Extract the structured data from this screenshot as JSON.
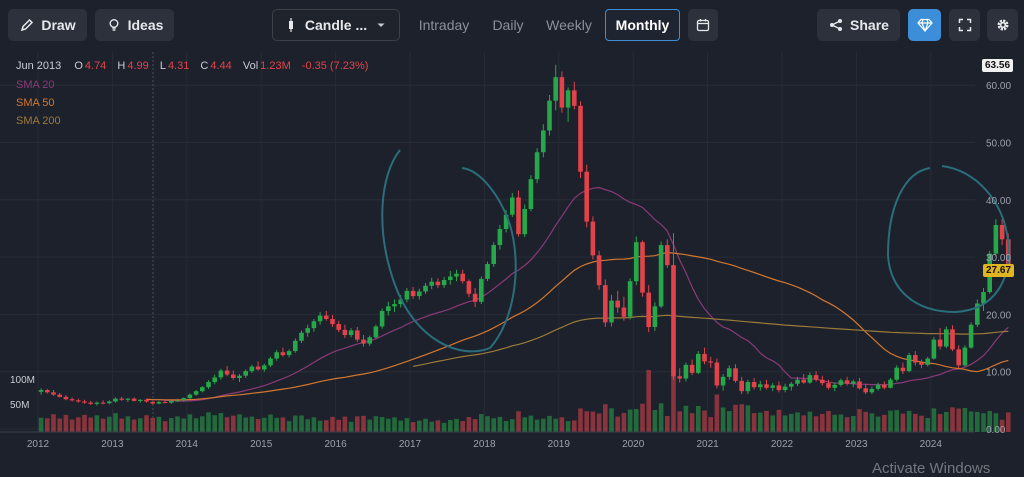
{
  "toolbar": {
    "draw_label": "Draw",
    "ideas_label": "Ideas",
    "chart_type_label": "Candle ...",
    "timeframes": [
      "Intraday",
      "Daily",
      "Weekly",
      "Monthly"
    ],
    "active_timeframe": "Monthly",
    "share_label": "Share"
  },
  "ohlc": {
    "date": "Jun 2013",
    "open_key": "O",
    "open": "4.74",
    "high_key": "H",
    "high": "4.99",
    "low_key": "L",
    "low": "4.31",
    "close_key": "C",
    "close": "4.44",
    "vol_key": "Vol",
    "vol": "1.23M",
    "change": "-0.35 (7.23%)"
  },
  "legend": {
    "sma20": "SMA 20",
    "sma50": "SMA 50",
    "sma200": "SMA 200"
  },
  "price_labels": {
    "top": "63.56",
    "current": "27.67"
  },
  "watermark": "Activate Windows",
  "colors": {
    "up": "#26a84a",
    "down": "#e2434b",
    "sma20": "#8a3a78",
    "sma50": "#d2772f",
    "sma200": "#9a7a3a",
    "annotation": "#2a6e7c",
    "accent": "#3d8ed8"
  },
  "chart_data": {
    "type": "candlestick",
    "title": "",
    "timeframe": "Monthly",
    "x_tick_labels": [
      "2012",
      "2013",
      "2014",
      "2015",
      "2016",
      "2017",
      "2018",
      "2019",
      "2020",
      "2021",
      "2022",
      "2023",
      "2024"
    ],
    "y_tick_labels": [
      "0.00",
      "10.00",
      "20.00",
      "30.00",
      "40.00",
      "50.00",
      "60.00"
    ],
    "ylim": [
      0,
      63.56
    ],
    "volume_labels": [
      "100M",
      "50M"
    ],
    "candles": [
      [
        6.5,
        7.1,
        6.0,
        6.8
      ],
      [
        6.8,
        7.0,
        6.2,
        6.4
      ],
      [
        6.4,
        6.8,
        5.8,
        6.0
      ],
      [
        6.0,
        6.3,
        5.5,
        5.6
      ],
      [
        5.6,
        5.9,
        5.0,
        5.2
      ],
      [
        5.2,
        5.5,
        4.8,
        5.0
      ],
      [
        5.0,
        5.3,
        4.6,
        4.8
      ],
      [
        4.8,
        5.1,
        4.4,
        4.6
      ],
      [
        4.6,
        4.9,
        4.2,
        4.4
      ],
      [
        4.4,
        4.8,
        4.1,
        4.6
      ],
      [
        4.6,
        5.0,
        4.3,
        4.5
      ],
      [
        4.5,
        5.0,
        4.3,
        4.8
      ],
      [
        4.8,
        5.5,
        4.6,
        5.3
      ],
      [
        5.3,
        5.6,
        4.9,
        5.1
      ],
      [
        5.1,
        5.4,
        4.7,
        5.3
      ],
      [
        5.3,
        5.5,
        4.8,
        4.9
      ],
      [
        4.9,
        5.2,
        4.6,
        5.1
      ],
      [
        5.1,
        5.3,
        4.6,
        4.8
      ],
      [
        4.74,
        4.99,
        4.31,
        4.44
      ],
      [
        4.44,
        4.9,
        4.3,
        4.7
      ],
      [
        4.7,
        5.0,
        4.5,
        4.6
      ],
      [
        4.6,
        5.0,
        4.4,
        4.9
      ],
      [
        4.9,
        5.3,
        4.7,
        5.0
      ],
      [
        5.0,
        5.5,
        4.8,
        5.4
      ],
      [
        5.4,
        6.2,
        5.2,
        6.0
      ],
      [
        6.0,
        6.8,
        5.8,
        6.6
      ],
      [
        6.6,
        7.5,
        6.4,
        7.3
      ],
      [
        7.3,
        8.5,
        7.0,
        8.2
      ],
      [
        8.2,
        9.5,
        7.8,
        9.0
      ],
      [
        9.0,
        10.5,
        8.6,
        10.2
      ],
      [
        10.2,
        11.0,
        9.2,
        9.5
      ],
      [
        9.5,
        10.2,
        8.6,
        8.9
      ],
      [
        8.9,
        9.6,
        8.2,
        9.3
      ],
      [
        9.3,
        10.4,
        8.9,
        10.1
      ],
      [
        10.1,
        11.2,
        9.8,
        10.9
      ],
      [
        10.9,
        11.8,
        10.2,
        10.4
      ],
      [
        10.4,
        11.4,
        10.0,
        11.1
      ],
      [
        11.1,
        12.6,
        10.8,
        12.3
      ],
      [
        12.3,
        13.8,
        11.9,
        13.4
      ],
      [
        13.4,
        14.2,
        12.6,
        12.9
      ],
      [
        12.9,
        13.9,
        12.5,
        13.6
      ],
      [
        13.6,
        15.8,
        13.3,
        15.4
      ],
      [
        15.4,
        17.2,
        15.0,
        16.8
      ],
      [
        16.8,
        18.2,
        16.1,
        17.6
      ],
      [
        17.6,
        19.2,
        17.0,
        18.8
      ],
      [
        18.8,
        20.4,
        18.2,
        19.8
      ],
      [
        19.8,
        20.6,
        18.9,
        19.2
      ],
      [
        19.2,
        19.9,
        17.8,
        18.3
      ],
      [
        18.3,
        18.9,
        16.9,
        17.3
      ],
      [
        17.3,
        18.2,
        15.9,
        16.4
      ],
      [
        16.4,
        17.6,
        16.0,
        17.2
      ],
      [
        17.2,
        17.8,
        15.2,
        15.6
      ],
      [
        15.6,
        16.4,
        14.4,
        14.9
      ],
      [
        14.9,
        16.3,
        14.5,
        16.0
      ],
      [
        16.0,
        18.2,
        15.8,
        17.9
      ],
      [
        17.9,
        21.0,
        17.5,
        20.6
      ],
      [
        20.6,
        22.2,
        19.8,
        21.4
      ],
      [
        21.4,
        22.6,
        20.4,
        21.8
      ],
      [
        21.8,
        23.4,
        21.2,
        22.6
      ],
      [
        22.6,
        24.6,
        22.1,
        24.1
      ],
      [
        24.1,
        24.8,
        22.7,
        23.2
      ],
      [
        23.2,
        24.5,
        22.6,
        24.0
      ],
      [
        24.0,
        25.5,
        23.6,
        25.0
      ],
      [
        25.0,
        26.4,
        24.4,
        25.7
      ],
      [
        25.7,
        26.3,
        24.6,
        25.1
      ],
      [
        25.1,
        26.5,
        24.6,
        26.0
      ],
      [
        26.0,
        27.6,
        25.2,
        26.6
      ],
      [
        26.6,
        27.8,
        25.8,
        27.1
      ],
      [
        27.1,
        27.8,
        25.4,
        25.8
      ],
      [
        25.8,
        26.1,
        23.0,
        23.6
      ],
      [
        23.6,
        24.6,
        21.3,
        22.2
      ],
      [
        22.2,
        26.6,
        21.8,
        26.2
      ],
      [
        26.2,
        29.2,
        25.8,
        28.8
      ],
      [
        28.8,
        32.6,
        28.3,
        32.1
      ],
      [
        32.1,
        35.6,
        31.3,
        34.9
      ],
      [
        34.9,
        38.2,
        34.3,
        37.4
      ],
      [
        37.4,
        41.2,
        37.0,
        40.4
      ],
      [
        40.4,
        41.6,
        33.6,
        34.0
      ],
      [
        34.0,
        39.2,
        33.5,
        38.4
      ],
      [
        38.4,
        44.3,
        38.0,
        43.6
      ],
      [
        43.6,
        49.0,
        42.9,
        48.3
      ],
      [
        48.3,
        53.2,
        47.4,
        52.1
      ],
      [
        52.1,
        58.3,
        51.2,
        57.3
      ],
      [
        57.3,
        63.56,
        55.6,
        61.4
      ],
      [
        61.4,
        62.4,
        55.2,
        56.1
      ],
      [
        56.1,
        59.6,
        53.6,
        59.1
      ],
      [
        59.1,
        60.6,
        55.8,
        56.4
      ],
      [
        56.4,
        57.2,
        43.8,
        44.9
      ],
      [
        44.9,
        46.1,
        35.2,
        36.2
      ],
      [
        36.2,
        37.1,
        29.6,
        30.3
      ],
      [
        30.3,
        31.1,
        24.3,
        25.1
      ],
      [
        25.1,
        26.1,
        17.8,
        18.6
      ],
      [
        18.6,
        23.4,
        17.9,
        22.4
      ],
      [
        22.4,
        24.1,
        20.3,
        21.2
      ],
      [
        21.2,
        23.1,
        18.9,
        19.6
      ],
      [
        19.6,
        26.3,
        19.1,
        25.8
      ],
      [
        25.8,
        33.6,
        25.1,
        32.6
      ],
      [
        32.6,
        32.9,
        23.1,
        23.8
      ],
      [
        23.8,
        25.1,
        16.9,
        17.8
      ],
      [
        17.8,
        22.1,
        17.1,
        21.4
      ],
      [
        21.4,
        32.7,
        21.1,
        32.1
      ],
      [
        32.1,
        33.1,
        28.1,
        28.6
      ],
      [
        28.6,
        34.2,
        8.6,
        9.2
      ],
      [
        9.2,
        10.6,
        8.1,
        8.8
      ],
      [
        8.8,
        11.6,
        8.3,
        11.2
      ],
      [
        11.2,
        12.1,
        9.4,
        9.8
      ],
      [
        9.8,
        13.6,
        9.6,
        13.1
      ],
      [
        13.1,
        14.2,
        11.3,
        11.8
      ],
      [
        11.8,
        12.6,
        10.7,
        11.6
      ],
      [
        11.6,
        12.3,
        7.1,
        7.6
      ],
      [
        7.6,
        9.6,
        6.7,
        9.1
      ],
      [
        9.1,
        11.1,
        8.6,
        10.6
      ],
      [
        10.6,
        11.3,
        8.1,
        8.4
      ],
      [
        8.4,
        9.1,
        6.1,
        6.6
      ],
      [
        6.6,
        8.6,
        6.1,
        8.2
      ],
      [
        8.2,
        8.9,
        6.9,
        7.3
      ],
      [
        7.3,
        8.4,
        6.7,
        7.8
      ],
      [
        7.8,
        8.6,
        6.9,
        7.2
      ],
      [
        7.2,
        8.0,
        6.6,
        7.6
      ],
      [
        7.6,
        8.3,
        6.4,
        6.8
      ],
      [
        6.8,
        7.9,
        6.4,
        7.4
      ],
      [
        7.4,
        8.2,
        6.7,
        7.9
      ],
      [
        7.9,
        9.1,
        7.5,
        8.6
      ],
      [
        8.6,
        9.6,
        7.9,
        8.1
      ],
      [
        8.1,
        9.9,
        7.9,
        9.4
      ],
      [
        9.4,
        10.1,
        8.3,
        8.6
      ],
      [
        8.6,
        9.3,
        7.6,
        8.0
      ],
      [
        8.0,
        8.6,
        6.9,
        7.2
      ],
      [
        7.2,
        8.1,
        6.6,
        7.7
      ],
      [
        7.7,
        8.8,
        7.4,
        8.5
      ],
      [
        8.5,
        9.1,
        7.6,
        7.9
      ],
      [
        7.9,
        8.6,
        7.3,
        8.3
      ],
      [
        8.3,
        8.9,
        6.9,
        7.1
      ],
      [
        7.1,
        7.9,
        6.1,
        6.4
      ],
      [
        6.4,
        7.4,
        6.1,
        7.0
      ],
      [
        7.0,
        8.1,
        6.7,
        7.7
      ],
      [
        7.7,
        8.3,
        6.9,
        7.2
      ],
      [
        7.2,
        8.9,
        7.1,
        8.6
      ],
      [
        8.6,
        11.1,
        8.3,
        10.7
      ],
      [
        10.7,
        11.6,
        9.6,
        10.1
      ],
      [
        10.1,
        13.3,
        9.9,
        12.9
      ],
      [
        12.9,
        13.6,
        11.1,
        11.6
      ],
      [
        11.6,
        12.1,
        10.6,
        11.2
      ],
      [
        11.2,
        12.6,
        10.9,
        12.3
      ],
      [
        12.3,
        16.1,
        12.1,
        15.6
      ],
      [
        15.6,
        17.6,
        13.9,
        14.4
      ],
      [
        14.4,
        17.9,
        14.1,
        17.4
      ],
      [
        17.4,
        18.1,
        13.6,
        13.9
      ],
      [
        13.9,
        14.6,
        10.6,
        11.1
      ],
      [
        11.1,
        14.6,
        10.9,
        14.2
      ],
      [
        14.2,
        18.6,
        14.0,
        18.2
      ],
      [
        18.2,
        22.6,
        17.8,
        21.9
      ],
      [
        21.9,
        24.6,
        20.6,
        23.9
      ],
      [
        23.9,
        31.1,
        23.6,
        30.6
      ],
      [
        30.6,
        36.6,
        30.1,
        35.6
      ],
      [
        35.6,
        36.6,
        32.1,
        33.1
      ],
      [
        33.1,
        34.1,
        27.1,
        27.67
      ]
    ]
  }
}
